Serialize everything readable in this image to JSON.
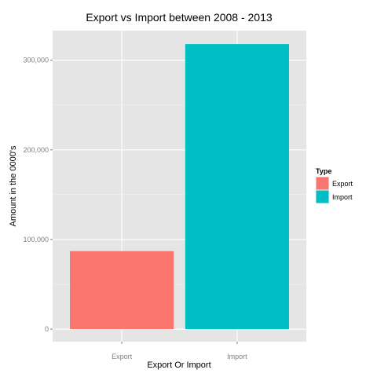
{
  "chart_data": {
    "type": "bar",
    "title": "Export vs Import between 2008 - 2013",
    "xlabel": "Export Or Import",
    "ylabel": "Amount in the 0000's",
    "categories": [
      "Export",
      "Import"
    ],
    "values": [
      87000,
      318000
    ],
    "colors": [
      "#f8766d",
      "#00bfc4"
    ],
    "ylim": [
      -14000,
      333000
    ],
    "yticks": [
      0,
      100000,
      200000,
      300000
    ],
    "ytick_labels": [
      "0",
      "100,000",
      "200,000",
      "300,000"
    ],
    "grid": true,
    "panel_background": "#e5e5e5",
    "legend": {
      "title": "Type",
      "placement": "right",
      "entries": [
        {
          "label": "Export",
          "color": "#f8766d"
        },
        {
          "label": "Import",
          "color": "#00bfc4"
        }
      ]
    }
  }
}
